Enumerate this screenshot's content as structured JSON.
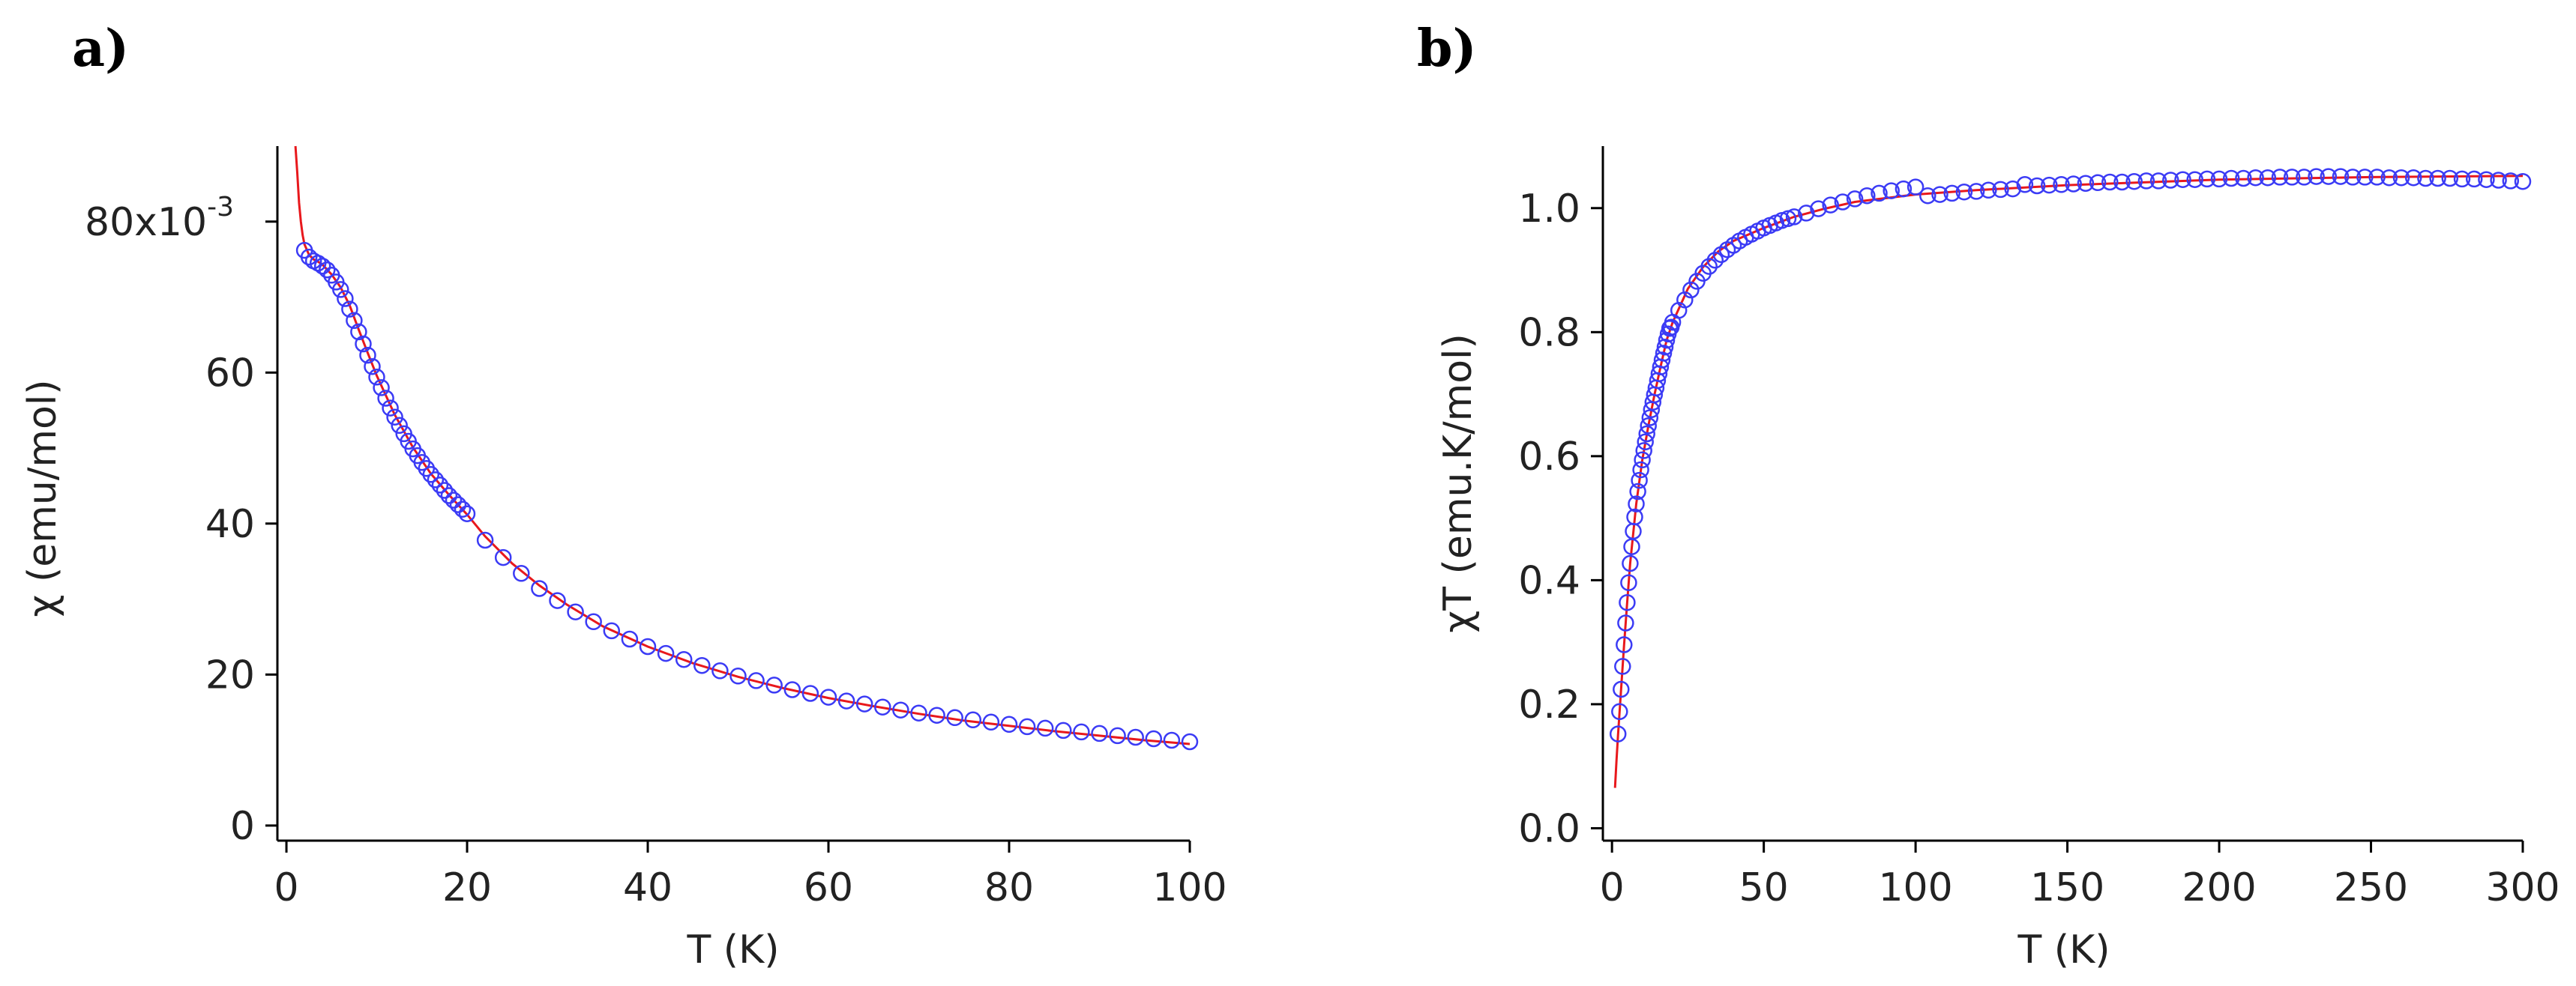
{
  "colors": {
    "marker": "#3b3bf5",
    "fit": "#e8181c",
    "axis": "#000000"
  },
  "chart_data": [
    {
      "type": "scatter",
      "panel_label": "a)",
      "xlabel": "T (K)",
      "ylabel": "χ (emu/mol)",
      "xlim": [
        -1,
        100
      ],
      "ylim": [
        -2,
        90
      ],
      "x_ticks": [
        0,
        20,
        40,
        60,
        80,
        100
      ],
      "x_tick_labels": [
        "0",
        "20",
        "40",
        "60",
        "80",
        "100"
      ],
      "y_ticks": [
        0,
        20,
        40,
        60,
        80
      ],
      "y_tick_labels": [
        "0",
        "20",
        "40",
        "60",
        "80x10"
      ],
      "y_exponent_label": "-3",
      "series": [
        {
          "name": "data",
          "style": "open-circle",
          "x": [
            2,
            2.5,
            3,
            3.5,
            4,
            4.5,
            5,
            5.5,
            6,
            6.5,
            7,
            7.5,
            8,
            8.5,
            9,
            9.5,
            10,
            10.5,
            11,
            11.5,
            12,
            12.5,
            13,
            13.5,
            14,
            14.5,
            15,
            15.5,
            16,
            16.5,
            17,
            17.5,
            18,
            18.5,
            19,
            19.5,
            20,
            22,
            24,
            26,
            28,
            30,
            32,
            34,
            36,
            38,
            40,
            42,
            44,
            46,
            48,
            50,
            52,
            54,
            56,
            58,
            60,
            62,
            64,
            66,
            68,
            70,
            72,
            74,
            76,
            78,
            80,
            82,
            84,
            86,
            88,
            90,
            92,
            94,
            96,
            98,
            100
          ],
          "y": [
            76.2,
            75.3,
            74.8,
            74.5,
            74.1,
            73.6,
            72.9,
            72.0,
            71.0,
            69.8,
            68.4,
            66.9,
            65.4,
            63.8,
            62.3,
            60.8,
            59.4,
            58.0,
            56.6,
            55.3,
            54.1,
            53.0,
            51.9,
            50.9,
            49.9,
            49.0,
            48.1,
            47.3,
            46.5,
            45.8,
            45.1,
            44.4,
            43.7,
            43.1,
            42.5,
            41.9,
            41.3,
            37.8,
            35.5,
            33.4,
            31.4,
            29.8,
            28.3,
            27.0,
            25.8,
            24.7,
            23.7,
            22.8,
            22.0,
            21.2,
            20.5,
            19.8,
            19.2,
            18.6,
            18.0,
            17.5,
            17.0,
            16.5,
            16.1,
            15.7,
            15.3,
            14.9,
            14.6,
            14.3,
            14.0,
            13.7,
            13.4,
            13.1,
            12.9,
            12.6,
            12.4,
            12.2,
            11.9,
            11.7,
            11.5,
            11.3,
            11.1
          ]
        },
        {
          "name": "fit",
          "style": "line",
          "x": [
            1.0,
            1.2,
            1.4,
            1.6,
            1.8,
            2.0,
            2.5,
            3.0,
            3.5,
            4.0,
            5.0,
            6.0,
            7.0,
            8.0,
            9.0,
            10.0,
            12.0,
            14.0,
            16.0,
            18.0,
            20.0,
            22.0,
            25.0,
            28.0,
            31.0,
            35.0,
            40.0,
            45.0,
            50.0,
            55.0,
            60.0,
            65.0,
            70.0,
            75.0,
            80.0,
            85.0,
            90.0,
            95.0,
            100.0
          ],
          "y": [
            92.0,
            86.5,
            82.5,
            80.0,
            78.2,
            77.0,
            75.6,
            75.0,
            74.7,
            74.3,
            73.0,
            71.3,
            68.9,
            65.7,
            62.6,
            59.6,
            54.4,
            50.1,
            46.6,
            43.8,
            41.2,
            38.3,
            34.7,
            31.8,
            29.3,
            26.4,
            23.7,
            21.5,
            19.7,
            18.2,
            16.9,
            15.8,
            14.8,
            13.9,
            13.2,
            12.5,
            11.9,
            11.3,
            10.8
          ]
        }
      ]
    },
    {
      "type": "scatter",
      "panel_label": "b)",
      "xlabel": "T (K)",
      "ylabel": "χT (emu.K/mol)",
      "xlim": [
        -3,
        300
      ],
      "ylim": [
        -0.02,
        1.1
      ],
      "x_ticks": [
        0,
        50,
        100,
        150,
        200,
        250,
        300
      ],
      "x_tick_labels": [
        "0",
        "50",
        "100",
        "150",
        "200",
        "250",
        "300"
      ],
      "y_ticks": [
        0.0,
        0.2,
        0.4,
        0.6,
        0.8,
        1.0
      ],
      "y_tick_labels": [
        "0.0",
        "0.2",
        "0.4",
        "0.6",
        "0.8",
        "1.0"
      ],
      "series": [
        {
          "name": "data",
          "style": "open-circle",
          "x": [
            2,
            2.5,
            3,
            3.5,
            4,
            4.5,
            5,
            5.5,
            6,
            6.5,
            7,
            7.5,
            8,
            8.5,
            9,
            9.5,
            10,
            10.5,
            11,
            11.5,
            12,
            12.5,
            13,
            13.5,
            14,
            14.5,
            15,
            15.5,
            16,
            16.5,
            17,
            17.5,
            18,
            18.5,
            19,
            19.5,
            20,
            22,
            24,
            26,
            28,
            30,
            32,
            34,
            36,
            38,
            40,
            42,
            44,
            46,
            48,
            50,
            52,
            54,
            56,
            58,
            60,
            64,
            68,
            72,
            76,
            80,
            84,
            88,
            92,
            96,
            100,
            104,
            108,
            112,
            116,
            120,
            124,
            128,
            132,
            136,
            140,
            144,
            148,
            152,
            156,
            160,
            164,
            168,
            172,
            176,
            180,
            184,
            188,
            192,
            196,
            200,
            204,
            208,
            212,
            216,
            220,
            224,
            228,
            232,
            236,
            240,
            244,
            248,
            252,
            256,
            260,
            264,
            268,
            272,
            276,
            280,
            284,
            288,
            292,
            296,
            300
          ],
          "y": [
            0.152,
            0.188,
            0.224,
            0.261,
            0.296,
            0.331,
            0.364,
            0.396,
            0.427,
            0.454,
            0.479,
            0.502,
            0.523,
            0.543,
            0.561,
            0.578,
            0.594,
            0.609,
            0.623,
            0.636,
            0.649,
            0.662,
            0.675,
            0.687,
            0.699,
            0.71,
            0.722,
            0.733,
            0.744,
            0.755,
            0.766,
            0.776,
            0.787,
            0.797,
            0.806,
            0.808,
            0.816,
            0.835,
            0.852,
            0.868,
            0.882,
            0.895,
            0.906,
            0.916,
            0.925,
            0.933,
            0.94,
            0.947,
            0.953,
            0.958,
            0.963,
            0.968,
            0.972,
            0.976,
            0.98,
            0.983,
            0.986,
            0.992,
            0.999,
            1.005,
            1.01,
            1.015,
            1.02,
            1.024,
            1.028,
            1.031,
            1.034,
            1.02,
            1.022,
            1.024,
            1.026,
            1.027,
            1.029,
            1.03,
            1.031,
            1.038,
            1.036,
            1.037,
            1.038,
            1.039,
            1.04,
            1.041,
            1.042,
            1.042,
            1.043,
            1.044,
            1.044,
            1.045,
            1.046,
            1.046,
            1.047,
            1.047,
            1.048,
            1.048,
            1.049,
            1.049,
            1.05,
            1.05,
            1.05,
            1.051,
            1.051,
            1.051,
            1.05,
            1.05,
            1.05,
            1.049,
            1.049,
            1.049,
            1.048,
            1.048,
            1.048,
            1.047,
            1.047,
            1.046,
            1.045,
            1.044,
            1.043
          ]
        },
        {
          "name": "fit",
          "style": "line",
          "x": [
            1,
            1.5,
            2,
            3,
            4,
            5,
            6,
            8,
            10,
            12,
            14,
            16,
            18,
            20,
            25,
            30,
            35,
            40,
            50,
            60,
            70,
            80,
            100,
            120,
            150,
            200,
            250,
            300
          ],
          "y": [
            0.065,
            0.11,
            0.15,
            0.224,
            0.296,
            0.364,
            0.427,
            0.523,
            0.594,
            0.649,
            0.699,
            0.744,
            0.787,
            0.816,
            0.87,
            0.905,
            0.93,
            0.947,
            0.968,
            0.986,
            0.999,
            1.01,
            1.022,
            1.029,
            1.037,
            1.046,
            1.05,
            1.052
          ]
        }
      ]
    }
  ]
}
